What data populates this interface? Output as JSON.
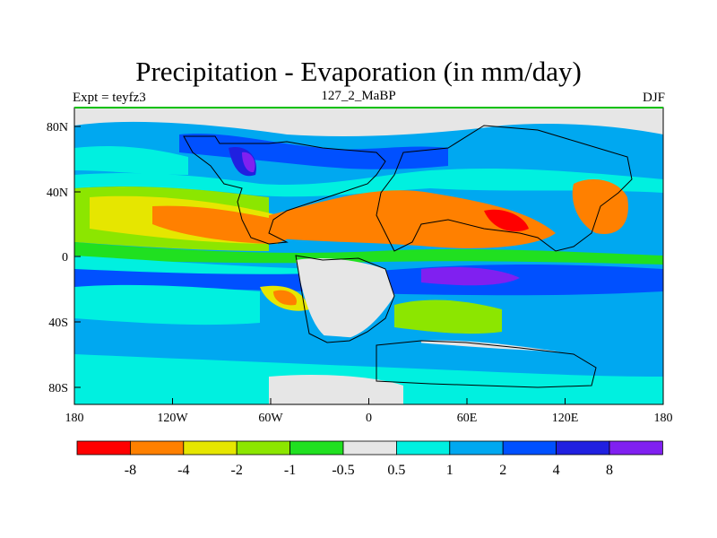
{
  "title": "Precipitation - Evaporation (in mm/day)",
  "left_label": "Expt = teyfz3",
  "center_label": "127_2_MaBP",
  "right_label": "DJF",
  "y_ticks": [
    "80N",
    "40N",
    "0",
    "40S",
    "80S"
  ],
  "x_ticks": [
    "180",
    "120W",
    "60W",
    "0",
    "60E",
    "120E",
    "180"
  ],
  "colorbar": {
    "colors": [
      "#ff0000",
      "#ff8000",
      "#e6e600",
      "#8ce600",
      "#20e020",
      "#e6e6e6",
      "#00f0e0",
      "#00a8f0",
      "#0050ff",
      "#2020e0",
      "#8020f0"
    ],
    "labels": [
      "-8",
      "-4",
      "-2",
      "-1",
      "-0.5",
      "0.5",
      "1",
      "2",
      "4",
      "8"
    ]
  },
  "palette": {
    "strong_dry": "#ff0000",
    "dry": "#ff8000",
    "yellow": "#e6e600",
    "lime": "#8ce600",
    "green": "#20e020",
    "neutral": "#e6e6e6",
    "cyan": "#00f0e0",
    "sky": "#00a8f0",
    "blue": "#0050ff",
    "deep_blue": "#2020e0",
    "purple": "#8020f0"
  }
}
